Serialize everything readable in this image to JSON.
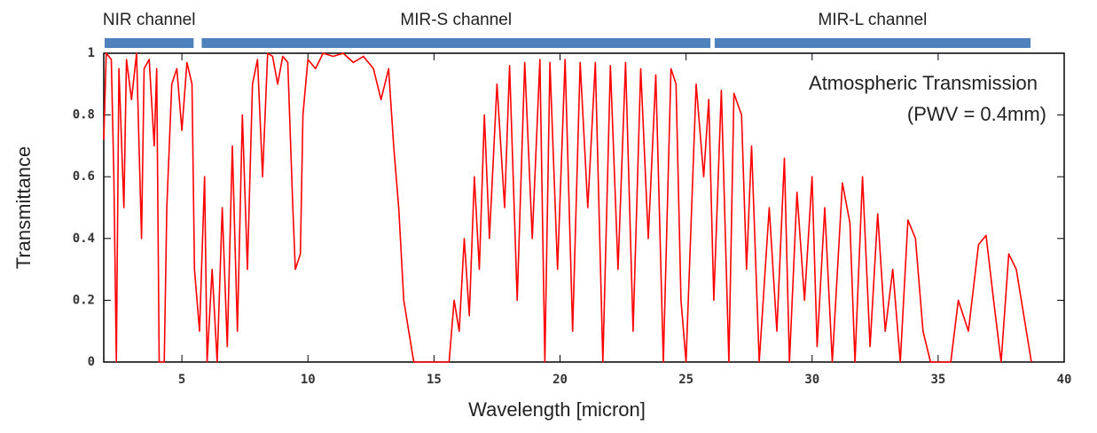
{
  "chart_data": {
    "type": "line",
    "title": "Atmospheric Transmission",
    "subtitle": "(PWV = 0.4mm)",
    "x_label": "Wavelength [micron]",
    "y_label": "Transmittance",
    "xlim": [
      1.9,
      40
    ],
    "ylim": [
      0,
      1
    ],
    "xticks": [
      5,
      10,
      15,
      20,
      25,
      30,
      35,
      40
    ],
    "yticks": [
      0,
      0.2,
      0.4,
      0.6,
      0.8,
      1
    ],
    "bands": [
      {
        "label": "NIR channel",
        "range": [
          1.9,
          5.5
        ]
      },
      {
        "label": "MIR-S channel",
        "range": [
          5.75,
          26.0
        ]
      },
      {
        "label": "MIR-L channel",
        "range": [
          26.1,
          38.7
        ]
      }
    ],
    "band_color": "#4f81bd",
    "series": [
      {
        "name": "Transmittance",
        "color": "#ff0000",
        "x": [
          1.9,
          2.0,
          2.2,
          2.3,
          2.4,
          2.5,
          2.7,
          2.8,
          3.0,
          3.2,
          3.4,
          3.5,
          3.7,
          3.9,
          4.0,
          4.1,
          4.3,
          4.4,
          4.6,
          4.8,
          5.0,
          5.2,
          5.4,
          5.5,
          5.7,
          5.9,
          6.0,
          6.2,
          6.4,
          6.6,
          6.8,
          7.0,
          7.2,
          7.4,
          7.6,
          7.8,
          8.0,
          8.2,
          8.4,
          8.6,
          8.8,
          9.0,
          9.2,
          9.4,
          9.5,
          9.7,
          9.8,
          10.0,
          10.3,
          10.6,
          11.0,
          11.4,
          11.8,
          12.2,
          12.6,
          12.9,
          13.2,
          13.4,
          13.6,
          13.8,
          14.0,
          14.2,
          15.6,
          15.8,
          16.0,
          16.2,
          16.4,
          16.6,
          16.8,
          17.0,
          17.2,
          17.5,
          17.8,
          18.0,
          18.3,
          18.6,
          18.9,
          19.2,
          19.4,
          19.6,
          19.9,
          20.2,
          20.5,
          20.8,
          21.1,
          21.4,
          21.7,
          22.0,
          22.3,
          22.6,
          22.9,
          23.2,
          23.5,
          23.8,
          24.1,
          24.4,
          24.6,
          24.8,
          25.0,
          25.4,
          25.7,
          25.9,
          26.1,
          26.4,
          26.7,
          26.9,
          27.2,
          27.4,
          27.6,
          27.9,
          28.3,
          28.6,
          28.9,
          29.1,
          29.4,
          29.7,
          30.0,
          30.2,
          30.5,
          30.8,
          31.2,
          31.5,
          31.7,
          32.0,
          32.3,
          32.6,
          32.9,
          33.2,
          33.5,
          33.8,
          34.1,
          34.4,
          34.7,
          35.5,
          35.8,
          36.2,
          36.6,
          36.9,
          37.2,
          37.5,
          37.8,
          38.1,
          38.4,
          38.7
        ],
        "values": [
          0.72,
          1,
          0.98,
          0.6,
          0,
          0.95,
          0.5,
          0.98,
          0.85,
          1,
          0.4,
          0.95,
          0.98,
          0.7,
          0.95,
          0,
          0,
          0.5,
          0.9,
          0.95,
          0.75,
          0.97,
          0.9,
          0.3,
          0.1,
          0.6,
          0,
          0.3,
          0,
          0.5,
          0.05,
          0.7,
          0.1,
          0.8,
          0.3,
          0.9,
          0.98,
          0.6,
          1,
          0.99,
          0.9,
          0.99,
          0.97,
          0.5,
          0.3,
          0.35,
          0.8,
          0.98,
          0.95,
          1,
          0.99,
          1,
          0.97,
          0.99,
          0.95,
          0.85,
          0.95,
          0.7,
          0.5,
          0.2,
          0.1,
          0,
          0,
          0.2,
          0.1,
          0.4,
          0.15,
          0.6,
          0.3,
          0.8,
          0.4,
          0.9,
          0.5,
          0.96,
          0.2,
          0.97,
          0.4,
          0.98,
          0,
          0.97,
          0.3,
          0.98,
          0.1,
          0.97,
          0.5,
          0.97,
          0,
          0.96,
          0.3,
          0.97,
          0.1,
          0.95,
          0.4,
          0.93,
          0,
          0.95,
          0.9,
          0.2,
          0,
          0.9,
          0.6,
          0.85,
          0.2,
          0.88,
          0,
          0.87,
          0.8,
          0.3,
          0.7,
          0,
          0.5,
          0.1,
          0.66,
          0,
          0.55,
          0.2,
          0.6,
          0.05,
          0.5,
          0,
          0.58,
          0.45,
          0,
          0.6,
          0.05,
          0.48,
          0.1,
          0.3,
          0,
          0.46,
          0.4,
          0.1,
          0,
          0,
          0.2,
          0.1,
          0.38,
          0.41,
          0.2,
          0,
          0.35,
          0.3,
          0.15,
          0
        ]
      }
    ]
  }
}
